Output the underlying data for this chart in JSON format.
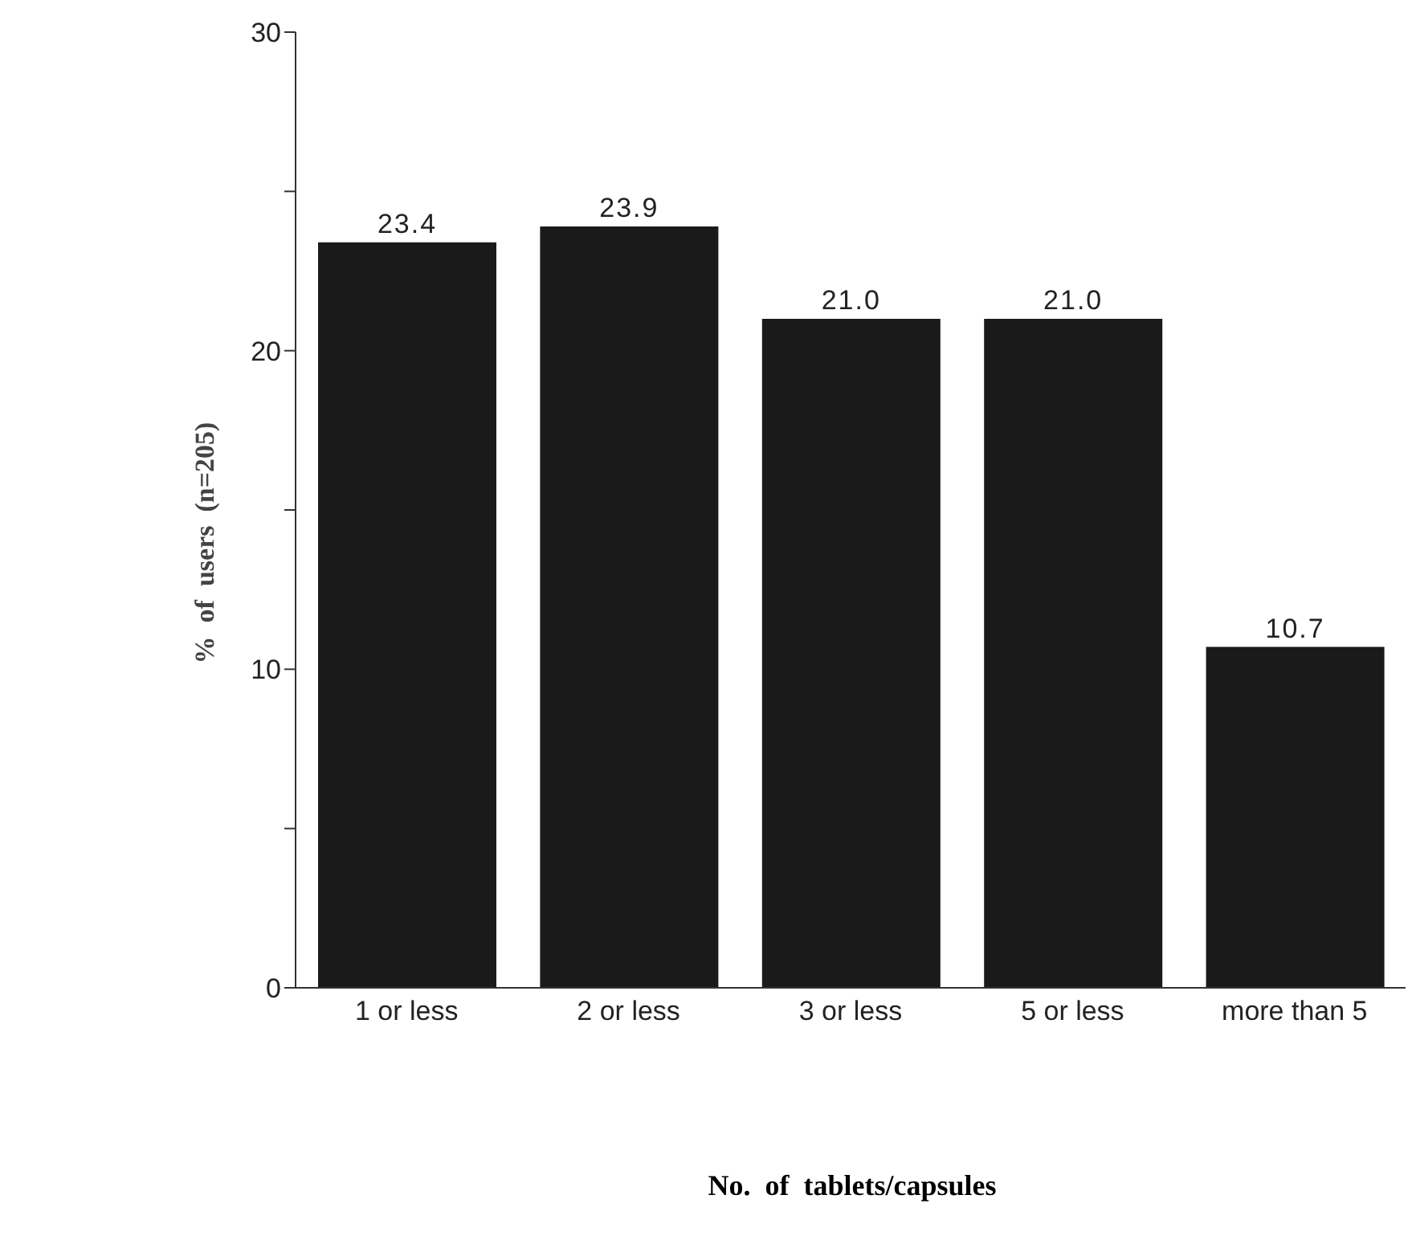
{
  "chart_data": {
    "type": "bar",
    "xlabel": "No.  of  tablets/capsules",
    "ylabel": "%  of  users  (n=205)",
    "categories": [
      "1 or less",
      "2 or less",
      "3 or less",
      "5 or less",
      "more than 5"
    ],
    "values": [
      23.4,
      23.9,
      21.0,
      21.0,
      10.7
    ],
    "value_labels": [
      "23.4",
      "23.9",
      "21.0",
      "21.0",
      "10.7"
    ],
    "color": "#1a1a1a",
    "ylim": [
      0,
      30
    ],
    "yticks": [
      0,
      {
        "value": 5,
        "label": null
      },
      10,
      {
        "value": 15,
        "label": null
      },
      20,
      {
        "value": 25,
        "label": null
      },
      30
    ],
    "grid": false,
    "legend": false
  }
}
